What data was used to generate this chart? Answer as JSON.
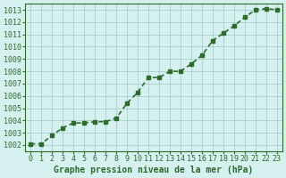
{
  "x": [
    0,
    1,
    2,
    3,
    4,
    5,
    6,
    7,
    8,
    9,
    10,
    11,
    12,
    13,
    14,
    15,
    16,
    17,
    18,
    19,
    20,
    21,
    22,
    23
  ],
  "y": [
    1002.1,
    1002.1,
    1002.8,
    1003.4,
    1003.8,
    1003.8,
    1003.9,
    1003.9,
    1004.2,
    1005.4,
    1006.3,
    1007.5,
    1007.5,
    1008.0,
    1008.0,
    1008.6,
    1009.3,
    1010.5,
    1011.1,
    1011.7,
    1012.4,
    1013.0,
    1013.1,
    1013.0
  ],
  "ylim": [
    1001.5,
    1013.5
  ],
  "xlim": [
    -0.5,
    23.5
  ],
  "yticks": [
    1002,
    1003,
    1004,
    1005,
    1006,
    1007,
    1008,
    1009,
    1010,
    1011,
    1012,
    1013
  ],
  "xticks": [
    0,
    1,
    2,
    3,
    4,
    5,
    6,
    7,
    8,
    9,
    10,
    11,
    12,
    13,
    14,
    15,
    16,
    17,
    18,
    19,
    20,
    21,
    22,
    23
  ],
  "line_color": "#2d6a2d",
  "marker_color": "#2d6a2d",
  "bg_color": "#d6f0f0",
  "grid_color": "#a0c8c8",
  "xlabel": "Graphe pression niveau de la mer (hPa)",
  "xlabel_fontsize": 7,
  "tick_fontsize": 6,
  "line_width": 1.2,
  "marker_size": 3
}
